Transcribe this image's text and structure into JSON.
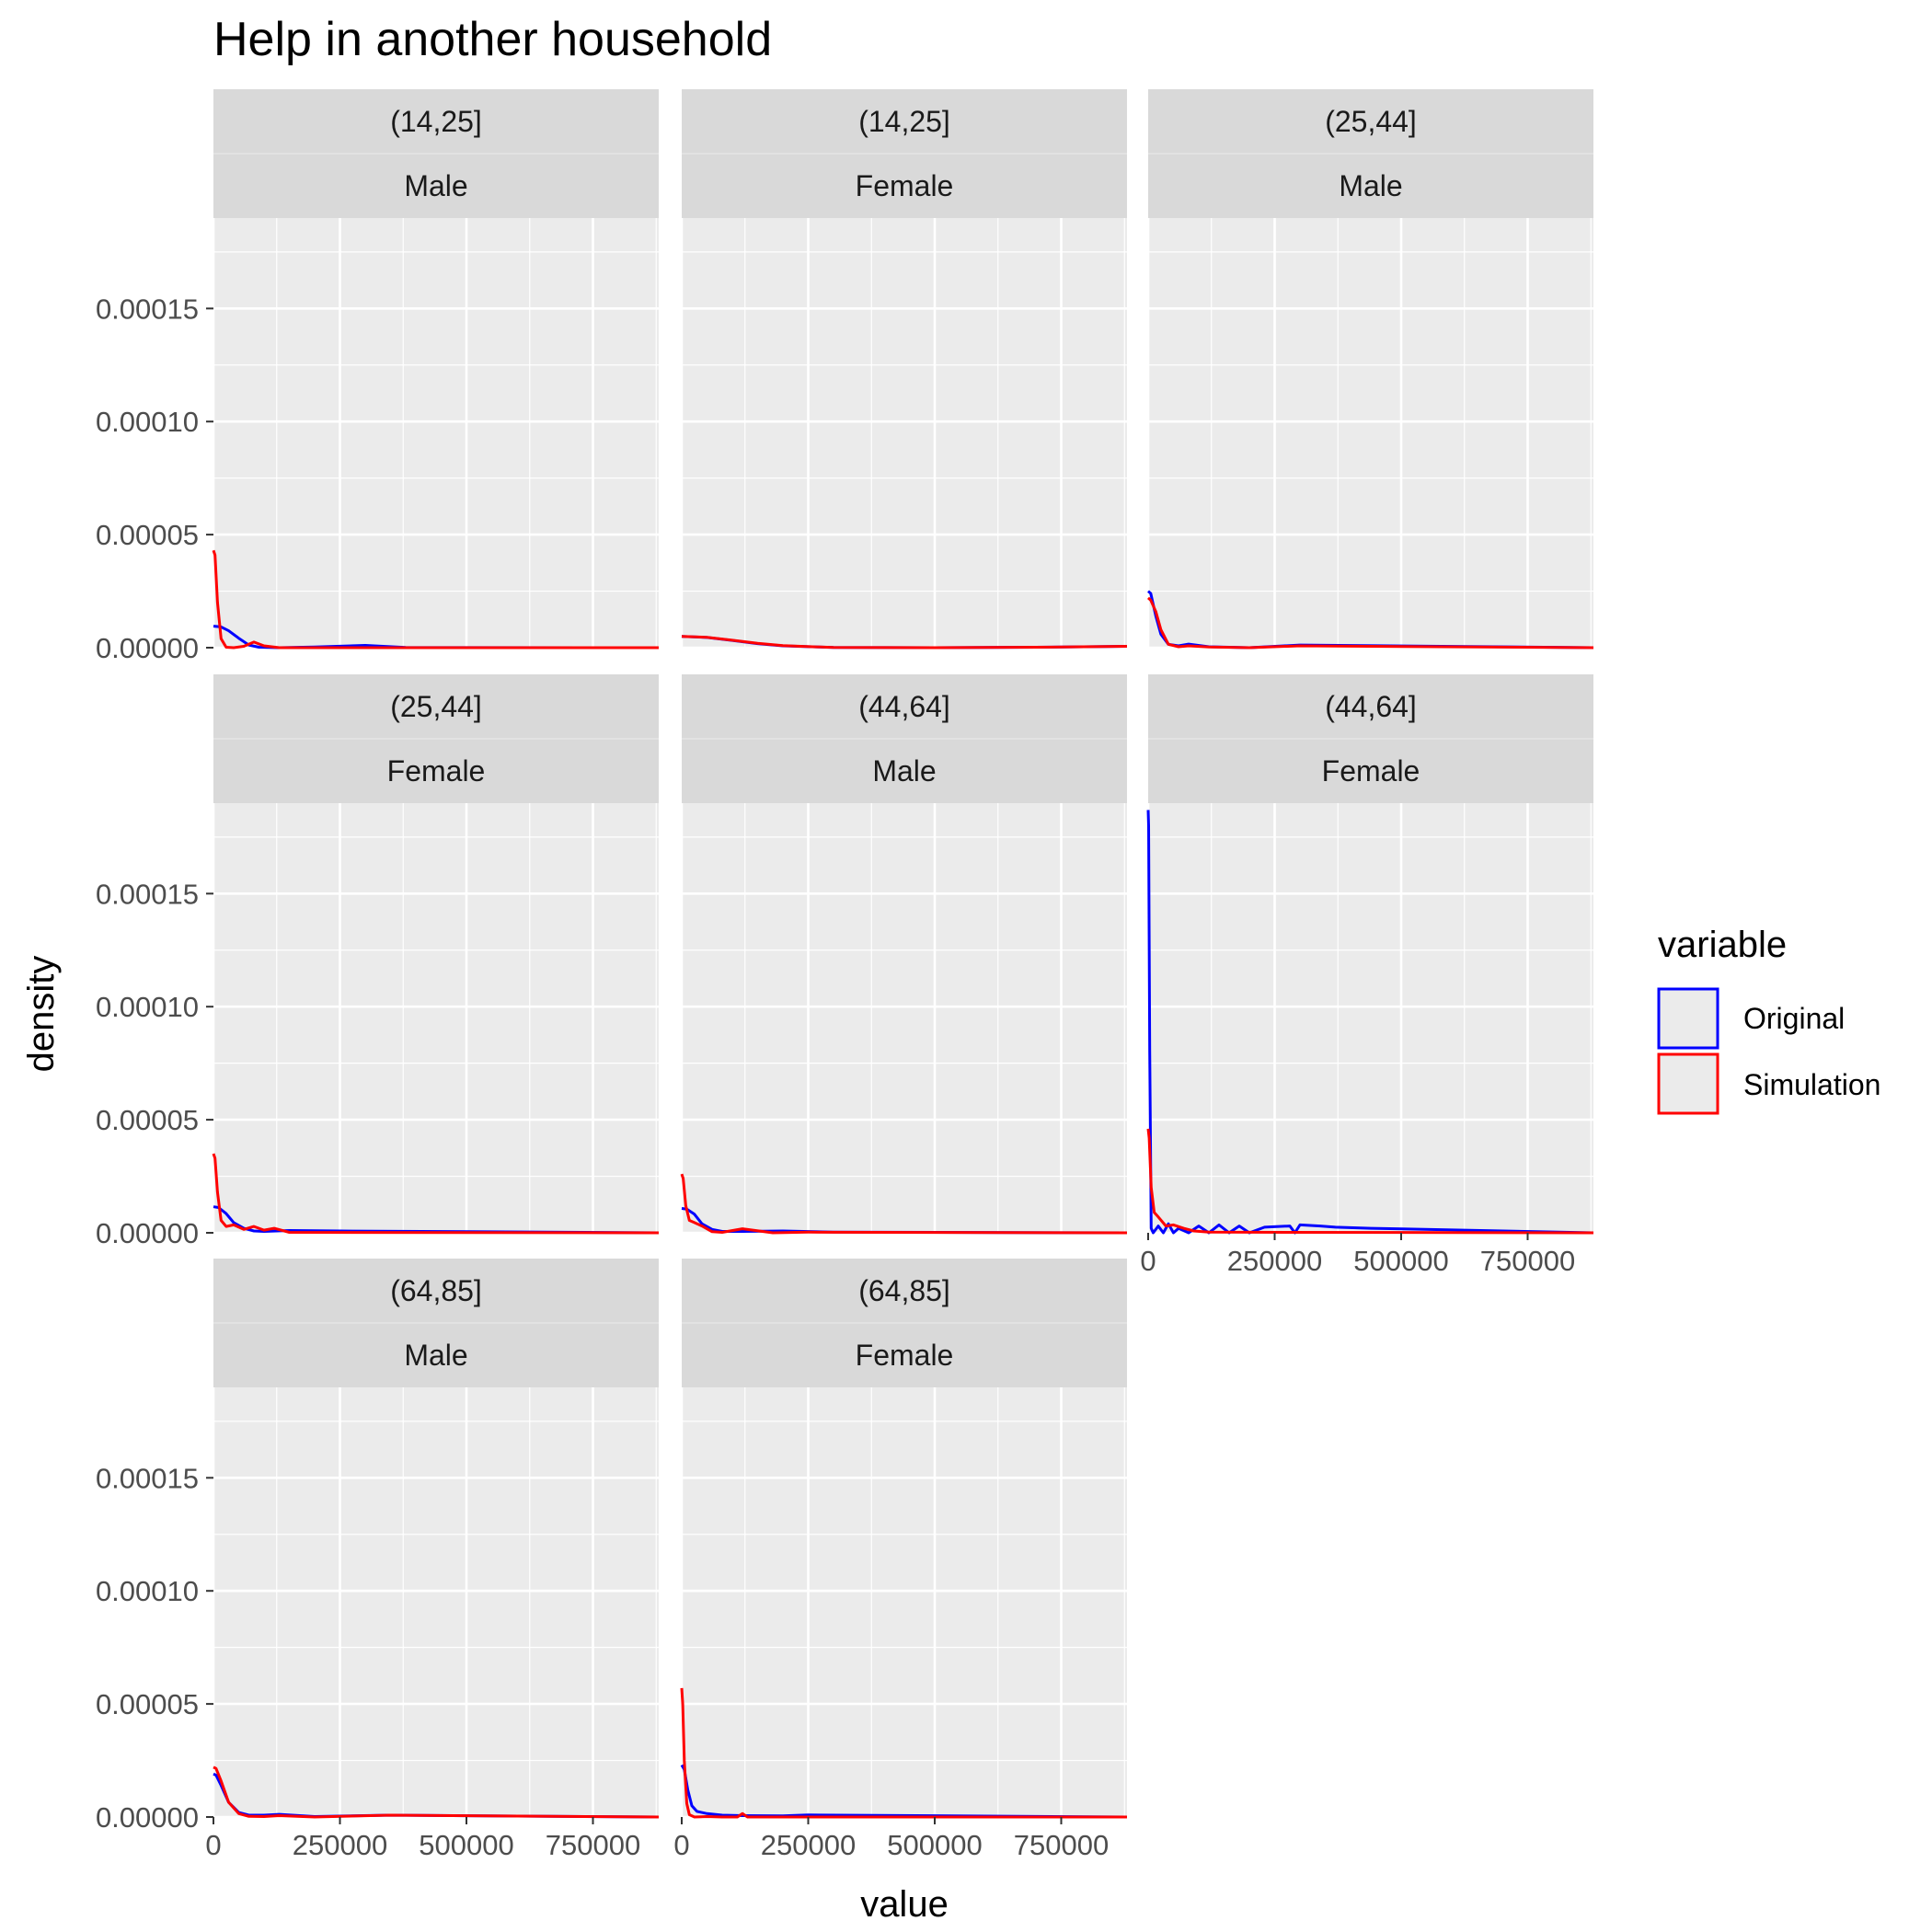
{
  "chart_data": {
    "type": "line",
    "title": "Help in another household",
    "xlabel": "value",
    "ylabel": "density",
    "xlim": [
      0,
      880000
    ],
    "ylim": [
      0,
      0.00019
    ],
    "x_ticks": [
      0,
      250000,
      500000,
      750000
    ],
    "x_tick_labels": [
      "0",
      "250000",
      "500000",
      "750000"
    ],
    "y_ticks": [
      0,
      5e-05,
      0.0001,
      0.00015
    ],
    "y_tick_labels": [
      "0.00000",
      "0.00005",
      "0.00010",
      "0.00015"
    ],
    "grid": true,
    "legend": {
      "title": "variable",
      "position": "right",
      "entries": [
        {
          "name": "Original",
          "color": "#0000ff"
        },
        {
          "name": "Simulation",
          "color": "#ff0000"
        }
      ]
    },
    "colors": {
      "Original": "#0000ff",
      "Simulation": "#ff0000"
    },
    "panels": [
      {
        "strip": [
          "(14,25]",
          "Male"
        ],
        "series": [
          {
            "name": "Original",
            "x": [
              0,
              15000,
              30000,
              50000,
              70000,
              90000,
              130000,
              200000,
              300000,
              380000,
              880000
            ],
            "y": [
              9.5e-06,
              9.2e-06,
              7.5e-06,
              4.2e-06,
              1.2e-06,
              2e-07,
              0,
              3e-07,
              1e-06,
              1e-07,
              0
            ]
          },
          {
            "name": "Simulation",
            "x": [
              0,
              3000,
              8000,
              15000,
              25000,
              40000,
              60000,
              80000,
              100000,
              130000,
              880000
            ],
            "y": [
              4.3e-05,
              4.1e-05,
              2e-05,
              4e-06,
              2e-07,
              0,
              6e-07,
              2.5e-06,
              8e-07,
              0,
              0
            ]
          }
        ]
      },
      {
        "strip": [
          "(14,25]",
          "Female"
        ],
        "series": [
          {
            "name": "Original",
            "x": [
              0,
              50000,
              100000,
              150000,
              200000,
              300000,
              500000,
              700000,
              880000
            ],
            "y": [
              5e-06,
              4.5e-06,
              3.2e-06,
              1.8e-06,
              8e-07,
              1e-07,
              0,
              2e-07,
              6e-07
            ]
          },
          {
            "name": "Simulation",
            "x": [
              0,
              50000,
              100000,
              150000,
              200000,
              300000,
              500000,
              700000,
              880000
            ],
            "y": [
              5e-06,
              4.6e-06,
              3.3e-06,
              1.9e-06,
              9e-07,
              1e-07,
              0,
              2e-07,
              6e-07
            ]
          }
        ]
      },
      {
        "strip": [
          "(25,44]",
          "Male"
        ],
        "series": [
          {
            "name": "Original",
            "x": [
              0,
              5000,
              15000,
              25000,
              40000,
              60000,
              80000,
              120000,
              200000,
              300000,
              880000
            ],
            "y": [
              2.5e-05,
              2.4e-05,
              1.4e-05,
              6e-06,
              1.5e-06,
              8e-07,
              1.6e-06,
              4e-07,
              0,
              1.2e-06,
              0
            ]
          },
          {
            "name": "Simulation",
            "x": [
              0,
              5000,
              15000,
              25000,
              40000,
              60000,
              80000,
              120000,
              200000,
              300000,
              880000
            ],
            "y": [
              2.2e-05,
              2.1e-05,
              1.6e-05,
              8e-06,
              1.5e-06,
              4e-07,
              8e-07,
              3e-07,
              0,
              8e-07,
              0
            ]
          }
        ]
      },
      {
        "strip": [
          "(25,44]",
          "Female"
        ],
        "series": [
          {
            "name": "Original",
            "x": [
              0,
              10000,
              25000,
              40000,
              60000,
              80000,
              100000,
              150000,
              250000,
              880000
            ],
            "y": [
              1.15e-05,
              1.12e-05,
              8.5e-06,
              4.5e-06,
              2e-06,
              8e-07,
              6e-07,
              1e-06,
              8e-07,
              0
            ]
          },
          {
            "name": "Simulation",
            "x": [
              0,
              3000,
              8000,
              15000,
              25000,
              40000,
              60000,
              80000,
              100000,
              120000,
              150000,
              880000
            ],
            "y": [
              3.5e-05,
              3.3e-05,
              1.8e-05,
              5.5e-06,
              2.8e-06,
              3.5e-06,
              1.5e-06,
              2.8e-06,
              1.2e-06,
              2e-06,
              2e-07,
              0
            ]
          }
        ]
      },
      {
        "strip": [
          "(44,64]",
          "Male"
        ],
        "series": [
          {
            "name": "Original",
            "x": [
              0,
              10000,
              25000,
              40000,
              60000,
              80000,
              120000,
              200000,
              300000,
              880000
            ],
            "y": [
              1.08e-05,
              1.05e-05,
              8.2e-06,
              4e-06,
              1.5e-06,
              6e-07,
              6e-07,
              8e-07,
              3e-07,
              0
            ]
          },
          {
            "name": "Simulation",
            "x": [
              0,
              3000,
              8000,
              15000,
              25000,
              40000,
              60000,
              80000,
              120000,
              180000,
              250000,
              880000
            ],
            "y": [
              2.6e-05,
              2.4e-05,
              1.2e-05,
              5.5e-06,
              4.5e-06,
              3e-06,
              5e-07,
              2e-07,
              1.8e-06,
              0,
              3e-07,
              0
            ]
          }
        ]
      },
      {
        "strip": [
          "(44,64]",
          "Female"
        ],
        "series": [
          {
            "name": "Original",
            "x": [
              0,
              1000,
              3000,
              6000,
              10000,
              20000,
              30000,
              40000,
              50000,
              60000,
              80000,
              100000,
              120000,
              140000,
              160000,
              180000,
              200000,
              230000,
              280000,
              290000,
              300000,
              340000,
              370000,
              440000,
              880000
            ],
            "y": [
              0.000187,
              0.00018,
              8e-05,
              2e-06,
              0,
              3e-06,
              0,
              4e-06,
              0,
              2e-06,
              0,
              3e-06,
              0,
              3.5e-06,
              0,
              3e-06,
              0,
              2.5e-06,
              3e-06,
              0,
              3.5e-06,
              3e-06,
              2.5e-06,
              2e-06,
              0
            ]
          },
          {
            "name": "Simulation",
            "x": [
              0,
              2000,
              6000,
              12000,
              20000,
              35000,
              50000,
              70000,
              90000,
              120000,
              880000
            ],
            "y": [
              4.6e-05,
              4.2e-05,
              2e-05,
              9e-06,
              7e-06,
              3e-06,
              3.5e-06,
              2e-06,
              8e-07,
              3e-07,
              0
            ]
          }
        ]
      },
      {
        "strip": [
          "(64,85]",
          "Male"
        ],
        "series": [
          {
            "name": "Original",
            "x": [
              0,
              5000,
              15000,
              30000,
              50000,
              70000,
              100000,
              130000,
              200000,
              350000,
              880000
            ],
            "y": [
              1.9e-05,
              1.85e-05,
              1.4e-05,
              6.5e-06,
              2e-06,
              8e-07,
              8e-07,
              1.2e-06,
              2e-07,
              8e-07,
              0
            ]
          },
          {
            "name": "Simulation",
            "x": [
              0,
              5000,
              15000,
              30000,
              50000,
              70000,
              100000,
              130000,
              200000,
              350000,
              880000
            ],
            "y": [
              2.2e-05,
              2.15e-05,
              1.6e-05,
              6.5e-06,
              1.5e-06,
              3e-07,
              2e-07,
              6e-07,
              0,
              8e-07,
              0
            ]
          }
        ]
      },
      {
        "strip": [
          "(64,85]",
          "Female"
        ],
        "series": [
          {
            "name": "Original",
            "x": [
              0,
              5000,
              12000,
              20000,
              30000,
              50000,
              80000,
              120000,
              200000,
              250000,
              880000
            ],
            "y": [
              2.3e-05,
              2.1e-05,
              1.2e-05,
              5e-06,
              2.5e-06,
              1.5e-06,
              8e-07,
              6e-07,
              5e-07,
              9e-07,
              0
            ]
          },
          {
            "name": "Simulation",
            "x": [
              0,
              2000,
              5000,
              10000,
              15000,
              25000,
              50000,
              80000,
              110000,
              120000,
              130000,
              880000
            ],
            "y": [
              5.7e-05,
              5e-05,
              2.5e-05,
              6e-06,
              1e-06,
              0,
              2e-07,
              0,
              0,
              1.5e-06,
              0,
              0
            ]
          }
        ]
      }
    ]
  }
}
